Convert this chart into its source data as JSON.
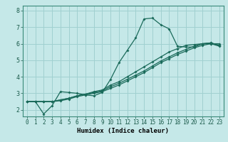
{
  "xlabel": "Humidex (Indice chaleur)",
  "bg_color": "#c5e8e8",
  "grid_color": "#a0d0d0",
  "line_color": "#1a6a5a",
  "xlim": [
    -0.5,
    23.5
  ],
  "ylim": [
    1.6,
    8.3
  ],
  "xticks": [
    0,
    1,
    2,
    3,
    4,
    5,
    6,
    7,
    8,
    9,
    10,
    11,
    12,
    13,
    14,
    15,
    16,
    17,
    18,
    19,
    20,
    21,
    22,
    23
  ],
  "yticks": [
    2,
    3,
    4,
    5,
    6,
    7,
    8
  ],
  "line1_x": [
    0,
    1,
    2,
    3,
    4,
    5,
    6,
    7,
    8,
    9,
    10,
    11,
    12,
    13,
    14,
    15,
    16,
    17,
    18,
    19,
    20,
    21,
    22,
    23
  ],
  "line1_y": [
    2.5,
    2.5,
    1.75,
    2.25,
    3.1,
    3.05,
    3.0,
    2.9,
    2.85,
    3.05,
    3.85,
    4.85,
    5.6,
    6.35,
    7.5,
    7.55,
    7.15,
    6.9,
    5.85,
    5.8,
    5.8,
    6.0,
    6.0,
    5.85
  ],
  "line2_x": [
    0,
    1,
    2,
    3,
    4,
    5,
    6,
    7,
    8,
    9,
    10,
    11,
    12,
    13,
    14,
    15,
    16,
    17,
    18,
    19,
    20,
    21,
    22,
    23
  ],
  "line2_y": [
    2.5,
    2.5,
    2.5,
    2.5,
    2.55,
    2.65,
    2.8,
    2.9,
    3.0,
    3.1,
    3.3,
    3.5,
    3.75,
    4.0,
    4.25,
    4.55,
    4.85,
    5.1,
    5.35,
    5.55,
    5.75,
    5.9,
    6.0,
    6.0
  ],
  "line3_x": [
    0,
    1,
    2,
    3,
    4,
    5,
    6,
    7,
    8,
    9,
    10,
    11,
    12,
    13,
    14,
    15,
    16,
    17,
    18,
    19,
    20,
    21,
    22,
    23
  ],
  "line3_y": [
    2.5,
    2.5,
    2.5,
    2.5,
    2.6,
    2.7,
    2.85,
    2.95,
    3.05,
    3.15,
    3.4,
    3.6,
    3.85,
    4.1,
    4.35,
    4.65,
    4.95,
    5.2,
    5.45,
    5.65,
    5.85,
    6.0,
    6.05,
    5.9
  ],
  "line4_x": [
    0,
    1,
    2,
    3,
    4,
    5,
    6,
    7,
    8,
    9,
    10,
    11,
    12,
    13,
    14,
    15,
    16,
    17,
    18,
    19,
    20,
    21,
    22,
    23
  ],
  "line4_y": [
    2.5,
    2.5,
    2.5,
    2.5,
    2.6,
    2.7,
    2.85,
    2.95,
    3.1,
    3.2,
    3.5,
    3.7,
    4.0,
    4.3,
    4.6,
    4.9,
    5.2,
    5.5,
    5.7,
    5.9,
    5.95,
    6.0,
    6.05,
    5.9
  ],
  "tick_fontsize": 5.5,
  "xlabel_fontsize": 6.5
}
